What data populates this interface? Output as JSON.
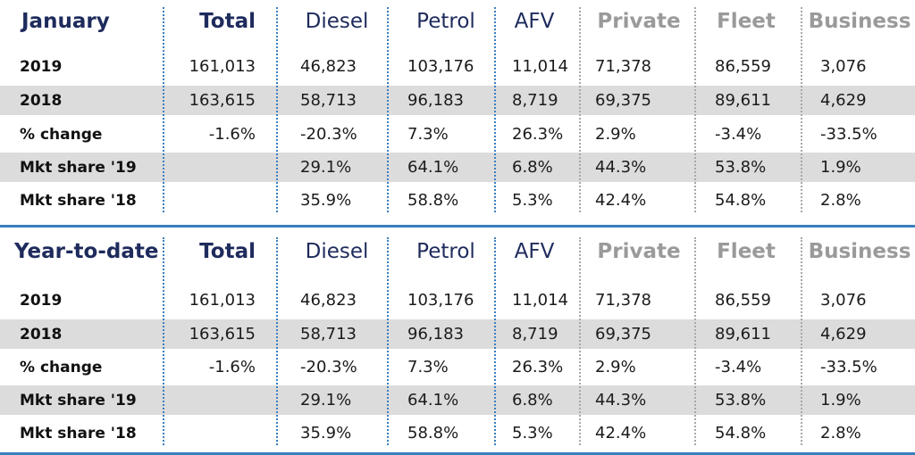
{
  "chart_data": [
    {
      "type": "table",
      "title": "January",
      "columns": [
        "Total",
        "Diesel",
        "Petrol",
        "AFV",
        "Private",
        "Fleet",
        "Business"
      ],
      "rows": [
        {
          "label": "2019",
          "values": [
            "161,013",
            "46,823",
            "103,176",
            "11,014",
            "71,378",
            "86,559",
            "3,076"
          ]
        },
        {
          "label": "2018",
          "values": [
            "163,615",
            "58,713",
            "96,183",
            "8,719",
            "69,375",
            "89,611",
            "4,629"
          ]
        },
        {
          "label": "% change",
          "values": [
            "-1.6%",
            "-20.3%",
            "7.3%",
            "26.3%",
            "2.9%",
            "-3.4%",
            "-33.5%"
          ]
        },
        {
          "label": "Mkt share '19",
          "values": [
            "",
            "29.1%",
            "64.1%",
            "6.8%",
            "44.3%",
            "53.8%",
            "1.9%"
          ]
        },
        {
          "label": "Mkt share '18",
          "values": [
            "",
            "35.9%",
            "58.8%",
            "5.3%",
            "42.4%",
            "54.8%",
            "2.8%"
          ]
        }
      ]
    },
    {
      "type": "table",
      "title": "Year-to-date",
      "columns": [
        "Total",
        "Diesel",
        "Petrol",
        "AFV",
        "Private",
        "Fleet",
        "Business"
      ],
      "rows": [
        {
          "label": "2019",
          "values": [
            "161,013",
            "46,823",
            "103,176",
            "11,014",
            "71,378",
            "86,559",
            "3,076"
          ]
        },
        {
          "label": "2018",
          "values": [
            "163,615",
            "58,713",
            "96,183",
            "8,719",
            "69,375",
            "89,611",
            "4,629"
          ]
        },
        {
          "label": "% change",
          "values": [
            "-1.6%",
            "-20.3%",
            "7.3%",
            "26.3%",
            "2.9%",
            "-3.4%",
            "-33.5%"
          ]
        },
        {
          "label": "Mkt share '19",
          "values": [
            "",
            "29.1%",
            "64.1%",
            "6.8%",
            "44.3%",
            "53.8%",
            "1.9%"
          ]
        },
        {
          "label": "Mkt share '18",
          "values": [
            "",
            "35.9%",
            "58.8%",
            "5.3%",
            "42.4%",
            "54.8%",
            "2.8%"
          ]
        }
      ]
    }
  ],
  "colors": {
    "title": "#1e2b5c",
    "buyer_header": "#9a9a9a",
    "row_shade": "#dcdcdc",
    "divider": "#3b7fbf"
  }
}
